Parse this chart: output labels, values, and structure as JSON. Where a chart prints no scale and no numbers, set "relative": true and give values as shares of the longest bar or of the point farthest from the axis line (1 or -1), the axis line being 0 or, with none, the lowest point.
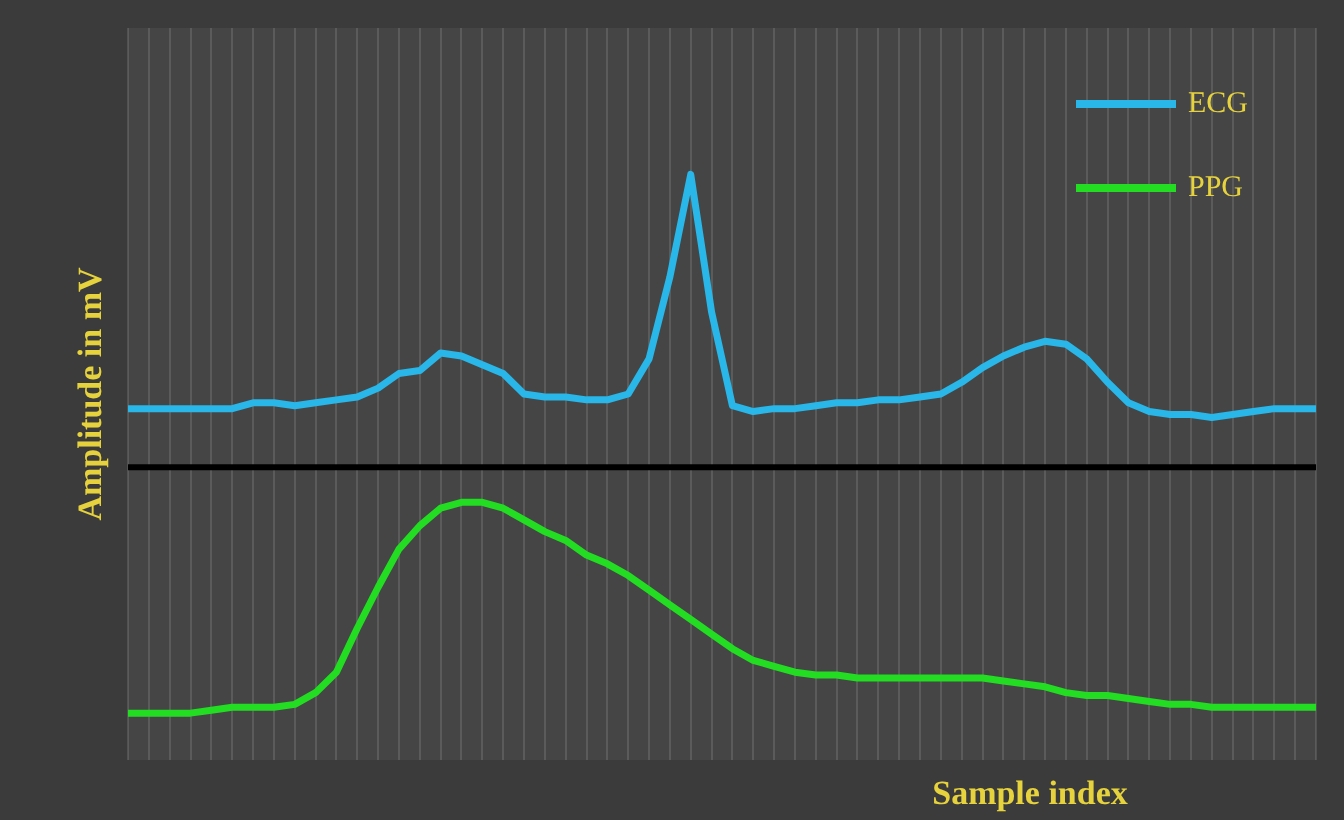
{
  "chart_data": {
    "type": "line",
    "relative": true,
    "xlabel": "Sample index",
    "ylabel": "Amplitude in mV",
    "legend": "top right",
    "grid": "x",
    "marker": "none",
    "categories": [
      null,
      null,
      null,
      null,
      null,
      null,
      null,
      null,
      null,
      null,
      null,
      null,
      null,
      null,
      null,
      null,
      null,
      null,
      null,
      null,
      null,
      null,
      null,
      null,
      null,
      null,
      null,
      null,
      null,
      null,
      null,
      null,
      null,
      null,
      null,
      null,
      null,
      null,
      null,
      null,
      null,
      null,
      null,
      null,
      null,
      null,
      null,
      null,
      null,
      null,
      null,
      null,
      null,
      null,
      null,
      null,
      null,
      null
    ],
    "series": [
      {
        "name": "ECG",
        "color": "#29b6e8",
        "values": [
          0.2,
          0.2,
          0.2,
          0.2,
          0.2,
          0.2,
          0.22,
          0.22,
          0.21,
          0.22,
          0.23,
          0.24,
          0.27,
          0.32,
          0.33,
          0.39,
          0.38,
          0.35,
          0.32,
          0.25,
          0.24,
          0.24,
          0.23,
          0.23,
          0.25,
          0.37,
          0.65,
          1,
          0.53,
          0.21,
          0.19,
          0.2,
          0.2,
          0.21,
          0.22,
          0.22,
          0.23,
          0.23,
          0.24,
          0.25,
          0.29,
          0.34,
          0.38,
          0.41,
          0.43,
          0.42,
          0.37,
          0.29,
          0.22,
          0.19,
          0.18,
          0.18,
          0.17,
          0.18,
          0.19,
          0.2,
          0.2,
          0.2
        ]
      },
      {
        "name": "PPG",
        "color": "#22dd22",
        "values": [
          -0.84,
          -0.84,
          -0.84,
          -0.84,
          -0.83,
          -0.82,
          -0.82,
          -0.82,
          -0.81,
          -0.77,
          -0.7,
          -0.55,
          -0.41,
          -0.28,
          -0.2,
          -0.14,
          -0.12,
          -0.12,
          -0.14,
          -0.18,
          -0.22,
          -0.25,
          -0.3,
          -0.33,
          -0.37,
          -0.42,
          -0.47,
          -0.52,
          -0.57,
          -0.62,
          -0.66,
          -0.68,
          -0.7,
          -0.71,
          -0.71,
          -0.72,
          -0.72,
          -0.72,
          -0.72,
          -0.72,
          -0.72,
          -0.72,
          -0.73,
          -0.74,
          -0.75,
          -0.77,
          -0.78,
          -0.78,
          -0.79,
          -0.8,
          -0.81,
          -0.81,
          -0.82,
          -0.82,
          -0.82,
          -0.82,
          -0.82,
          -0.82
        ]
      }
    ]
  }
}
